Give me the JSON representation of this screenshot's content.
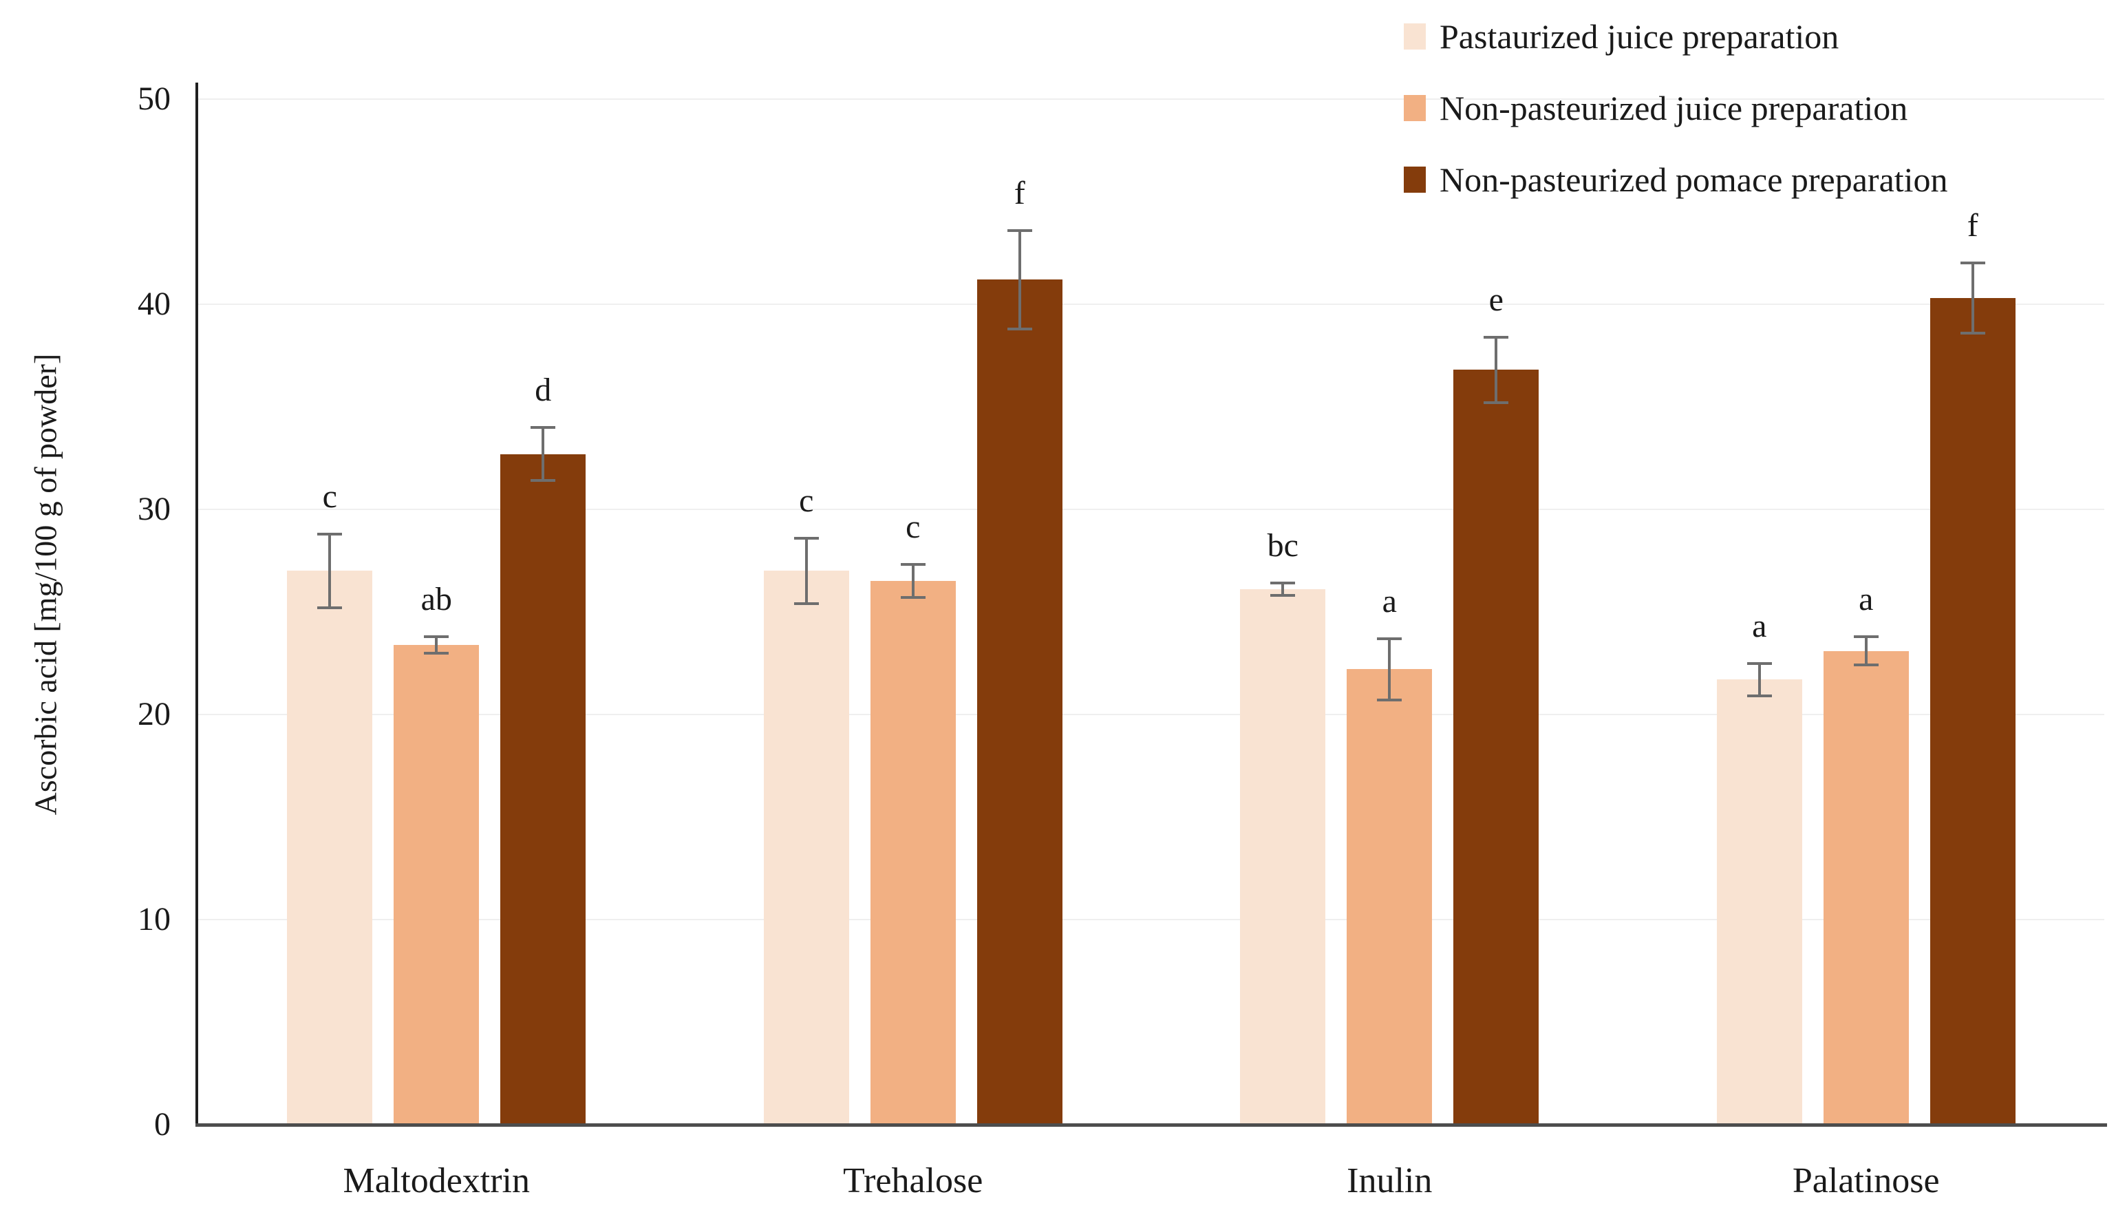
{
  "chart_data": {
    "type": "bar",
    "title": "",
    "ylabel": "Ascorbic acid [mg/100 g of powder]",
    "xlabel": "",
    "ylim": [
      0,
      50
    ],
    "yticks": [
      0,
      10,
      20,
      30,
      40,
      50
    ],
    "grid": true,
    "legend_position": "top-right",
    "categories": [
      "Maltodextrin",
      "Trehalose",
      "Inulin",
      "Palatinose"
    ],
    "series": [
      {
        "name": "Pastaurized juice preparation",
        "color": "#F9E3D2",
        "values": [
          27.0,
          27.0,
          26.1,
          21.7
        ],
        "errors": [
          1.8,
          1.6,
          0.3,
          0.8
        ],
        "letters": [
          "c",
          "c",
          "bc",
          "a"
        ]
      },
      {
        "name": "Non-pasteurized juice preparation",
        "color": "#F2B083",
        "values": [
          23.4,
          26.5,
          22.2,
          23.1
        ],
        "errors": [
          0.4,
          0.8,
          1.5,
          0.7
        ],
        "letters": [
          "ab",
          "c",
          "a",
          "a"
        ]
      },
      {
        "name": "Non-pasteurized pomace preparation",
        "color": "#843C0C",
        "values": [
          32.7,
          41.2,
          36.8,
          40.3
        ],
        "errors": [
          1.3,
          2.4,
          1.6,
          1.7
        ],
        "letters": [
          "d",
          "f",
          "e",
          "f"
        ]
      }
    ],
    "colors": {
      "gridline": "#EFEFEF",
      "y_axis_line": "#1f1f1f",
      "x_axis_line": "#4d4d4d",
      "error_bar": "#6e6e6e",
      "text": "#1a1a1a"
    }
  }
}
